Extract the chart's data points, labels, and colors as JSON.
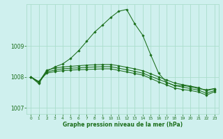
{
  "title": "Graphe pression niveau de la mer (hPa)",
  "background_color": "#cff0ee",
  "grid_color": "#aaddcc",
  "line_color": "#1a6e1a",
  "xlim": [
    -0.5,
    23.5
  ],
  "ylim": [
    1006.8,
    1010.35
  ],
  "yticks": [
    1007,
    1008,
    1009
  ],
  "xticks": [
    0,
    1,
    2,
    3,
    4,
    5,
    6,
    7,
    8,
    9,
    10,
    11,
    12,
    13,
    14,
    15,
    16,
    17,
    18,
    19,
    20,
    21,
    22,
    23
  ],
  "series": [
    {
      "x": [
        0,
        1,
        2,
        3,
        4,
        5,
        6,
        7,
        8,
        9,
        10,
        11,
        12,
        13,
        14,
        15,
        16,
        17,
        18,
        19,
        20,
        21,
        22,
        23
      ],
      "y": [
        1008.0,
        1007.78,
        1008.18,
        1008.32,
        1008.42,
        1008.6,
        1008.85,
        1009.15,
        1009.45,
        1009.68,
        1009.92,
        1010.12,
        1010.18,
        1009.72,
        1009.35,
        1008.72,
        1008.12,
        1007.82,
        1007.72,
        1007.72,
        1007.68,
        1007.62,
        1007.58,
        1007.62
      ]
    },
    {
      "x": [
        0,
        1,
        2,
        3,
        4,
        5,
        6,
        7,
        8,
        9,
        10,
        11,
        12,
        13,
        14,
        15,
        16,
        17,
        18,
        19,
        20,
        21,
        22,
        23
      ],
      "y": [
        1008.0,
        1007.82,
        1008.22,
        1008.28,
        1008.32,
        1008.34,
        1008.36,
        1008.38,
        1008.39,
        1008.4,
        1008.4,
        1008.36,
        1008.31,
        1008.26,
        1008.2,
        1008.1,
        1008.0,
        1007.9,
        1007.8,
        1007.75,
        1007.7,
        1007.65,
        1007.55,
        1007.62
      ]
    },
    {
      "x": [
        0,
        1,
        2,
        3,
        4,
        5,
        6,
        7,
        8,
        9,
        10,
        11,
        12,
        13,
        14,
        15,
        16,
        17,
        18,
        19,
        20,
        21,
        22,
        23
      ],
      "y": [
        1008.0,
        1007.84,
        1008.16,
        1008.22,
        1008.26,
        1008.28,
        1008.29,
        1008.31,
        1008.32,
        1008.33,
        1008.33,
        1008.28,
        1008.23,
        1008.18,
        1008.12,
        1008.02,
        1007.92,
        1007.82,
        1007.72,
        1007.67,
        1007.62,
        1007.57,
        1007.47,
        1007.56
      ]
    },
    {
      "x": [
        0,
        1,
        2,
        3,
        4,
        5,
        6,
        7,
        8,
        9,
        10,
        11,
        12,
        13,
        14,
        15,
        16,
        17,
        18,
        19,
        20,
        21,
        22,
        23
      ],
      "y": [
        1008.0,
        1007.85,
        1008.12,
        1008.17,
        1008.2,
        1008.22,
        1008.23,
        1008.24,
        1008.25,
        1008.26,
        1008.26,
        1008.21,
        1008.16,
        1008.11,
        1008.06,
        1007.95,
        1007.84,
        1007.74,
        1007.64,
        1007.59,
        1007.56,
        1007.51,
        1007.41,
        1007.52
      ]
    }
  ]
}
